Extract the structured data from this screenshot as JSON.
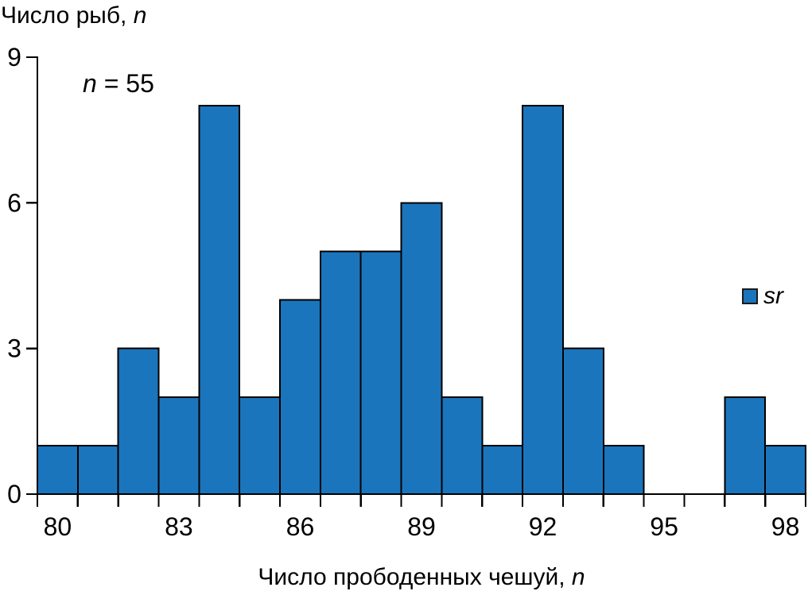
{
  "figure": {
    "y_axis_title": {
      "text": "Число рыб, ",
      "italic": "n"
    },
    "annotation": {
      "italic": "n",
      "text": " = 55"
    },
    "x_axis_title": {
      "text": "Число прободенных чешуй, ",
      "italic": "n"
    },
    "legend": {
      "label": "sr"
    }
  },
  "chart_data": {
    "type": "bar",
    "title": "Число рыб, n",
    "ylabel": "Число рыб, n",
    "xlabel": "Число прободенных чешуй, n",
    "annotation": "n = 55",
    "sample_size": 55,
    "categories": [
      80,
      81,
      82,
      83,
      84,
      85,
      86,
      87,
      88,
      89,
      90,
      91,
      92,
      93,
      94,
      95,
      96,
      97,
      98
    ],
    "series": [
      {
        "name": "sr",
        "values": [
          1,
          1,
          3,
          2,
          8,
          2,
          4,
          5,
          5,
          6,
          2,
          1,
          8,
          3,
          1,
          0,
          0,
          2,
          1
        ]
      }
    ],
    "values": [
      1,
      1,
      3,
      2,
      8,
      2,
      4,
      5,
      5,
      6,
      2,
      1,
      8,
      3,
      1,
      0,
      0,
      2,
      1
    ],
    "ylim": [
      0,
      9
    ],
    "yticks": [
      0,
      3,
      6,
      9
    ],
    "xtick_labels": [
      "80",
      "83",
      "86",
      "89",
      "92",
      "95",
      "98"
    ],
    "xtick_every": 3,
    "grid": false,
    "legend_position": "right-inside",
    "bar_color": "#1B75BC",
    "bar_edge_color": "#000000",
    "axis_color": "#000000"
  }
}
